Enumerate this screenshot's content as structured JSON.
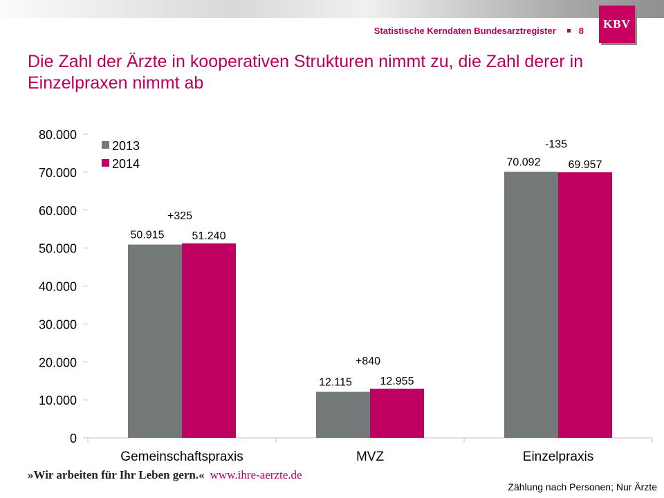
{
  "header": {
    "text": "Statistische Kerndaten Bundesarztregister",
    "page_number": "8",
    "logo_text": "KBV"
  },
  "title": "Die Zahl der Ärzte in kooperativen Strukturen nimmt zu, die Zahl derer in Einzelpraxen nimmt ab",
  "colors": {
    "accent": "#b8005c",
    "series_2013": "#737878",
    "series_2014": "#be0060"
  },
  "chart_data": {
    "type": "bar",
    "categories": [
      "Gemeinschaftspraxis",
      "MVZ",
      "Einzelpraxis"
    ],
    "series": [
      {
        "name": "2013",
        "values": [
          50915,
          12115,
          70092
        ],
        "labels": [
          "50.915",
          "12.115",
          "70.092"
        ]
      },
      {
        "name": "2014",
        "values": [
          51240,
          12955,
          69957
        ],
        "labels": [
          "51.240",
          "12.955",
          "69.957"
        ]
      }
    ],
    "differences": [
      "+325",
      "+840",
      "-135"
    ],
    "ylim": [
      0,
      80000
    ],
    "yticks": [
      0,
      10000,
      20000,
      30000,
      40000,
      50000,
      60000,
      70000,
      80000
    ],
    "ytick_labels": [
      "0",
      "10.000",
      "20.000",
      "30.000",
      "40.000",
      "50.000",
      "60.000",
      "70.000",
      "80.000"
    ],
    "title": "",
    "xlabel": "",
    "ylabel": "",
    "grid": false,
    "legend": "top-left"
  },
  "footer": {
    "slogan_open": "»",
    "slogan": "Wir arbeiten für Ihr Leben gern.",
    "slogan_close": "«",
    "url": "www.ihre-aerzte.de",
    "footnote": "Zählung nach Personen; Nur Ärzte"
  }
}
